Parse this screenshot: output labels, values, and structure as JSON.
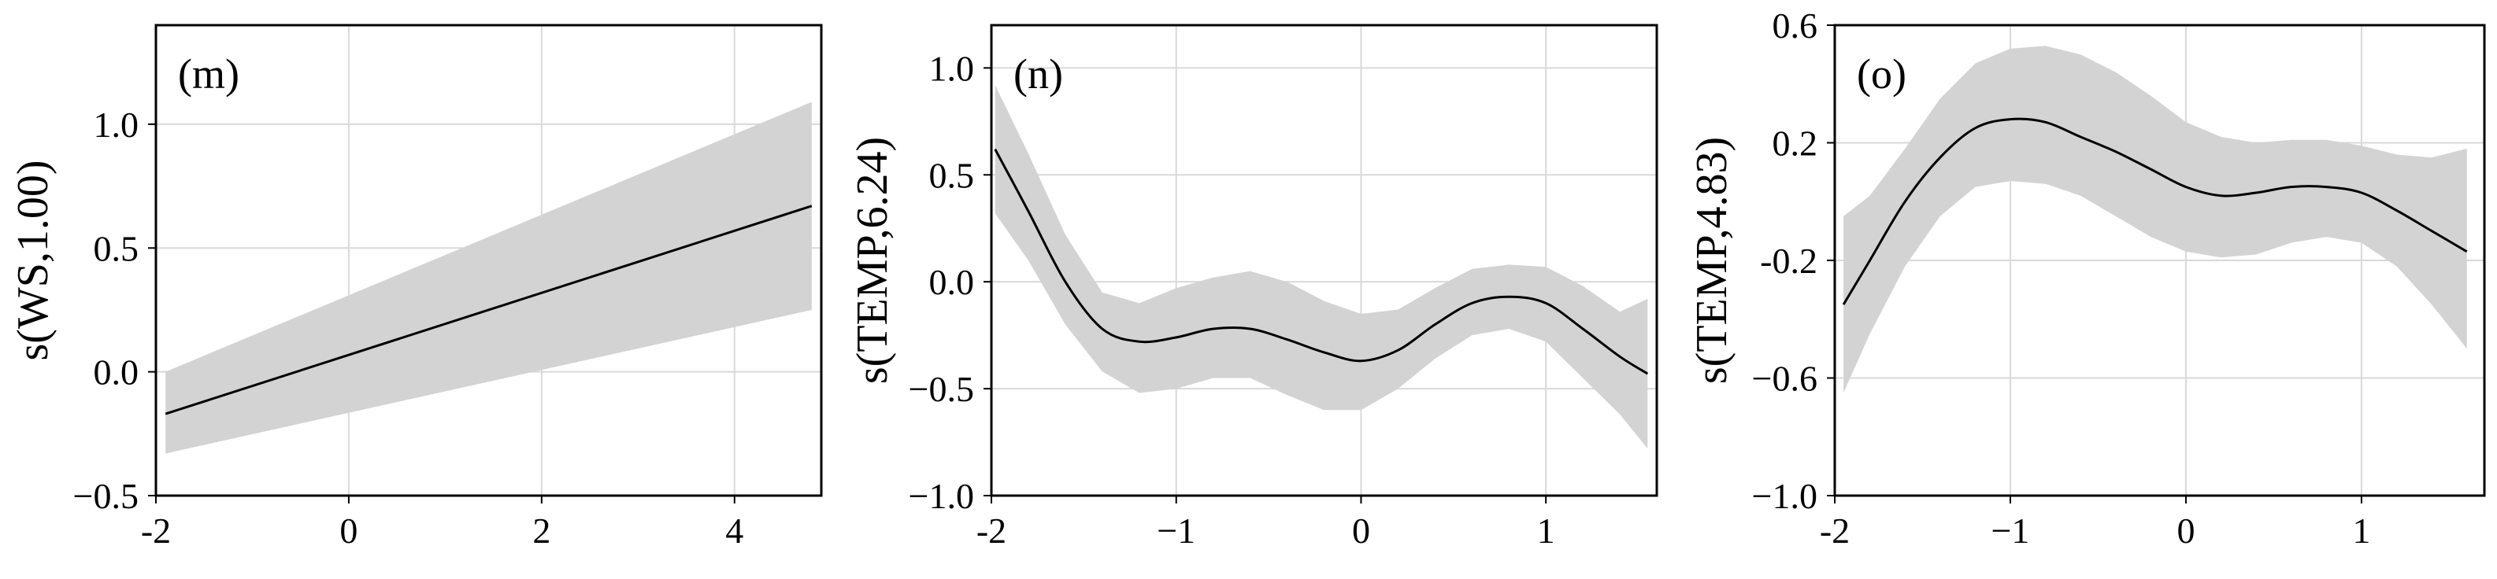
{
  "chart_data": [
    {
      "type": "line",
      "panel_label": "(m)",
      "ylabel": "s(WS,1.00)",
      "xlim": [
        -2,
        4.9
      ],
      "ylim": [
        -0.5,
        1.4
      ],
      "xticks": [
        -2,
        0,
        2,
        4
      ],
      "yticks": [
        -0.5,
        0.0,
        0.5,
        1.0
      ],
      "xtick_labels": [
        "-2",
        "0",
        "2",
        "4"
      ],
      "ytick_labels": [
        "−0.5",
        "0.0",
        "0.5",
        "1.0"
      ],
      "grid": true,
      "series": [
        {
          "x": [
            -1.9,
            4.8
          ],
          "y": [
            -0.17,
            0.67
          ],
          "lower": [
            -0.33,
            0.25
          ],
          "upper": [
            0.0,
            1.09
          ]
        }
      ]
    },
    {
      "type": "line",
      "panel_label": "(n)",
      "ylabel": "s(TEMP,6.24)",
      "xlim": [
        -2.0,
        1.6
      ],
      "ylim": [
        -1.0,
        1.2
      ],
      "xticks": [
        -2,
        -1,
        0,
        1
      ],
      "yticks": [
        -1.0,
        -0.5,
        0.0,
        0.5,
        1.0
      ],
      "xtick_labels": [
        "-2",
        "−1",
        "0",
        "1"
      ],
      "ytick_labels": [
        "−1.0",
        "−0.5",
        "0.0",
        "0.5",
        "1.0"
      ],
      "grid": true,
      "series": [
        {
          "x": [
            -1.98,
            -1.8,
            -1.6,
            -1.4,
            -1.2,
            -1.0,
            -0.8,
            -0.6,
            -0.4,
            -0.2,
            0.0,
            0.2,
            0.4,
            0.6,
            0.8,
            1.0,
            1.2,
            1.4,
            1.55
          ],
          "y": [
            0.62,
            0.33,
            0.0,
            -0.22,
            -0.28,
            -0.26,
            -0.22,
            -0.22,
            -0.27,
            -0.33,
            -0.37,
            -0.32,
            -0.2,
            -0.1,
            -0.07,
            -0.1,
            -0.22,
            -0.35,
            -0.43
          ],
          "lower": [
            0.32,
            0.1,
            -0.2,
            -0.42,
            -0.52,
            -0.5,
            -0.45,
            -0.45,
            -0.53,
            -0.6,
            -0.6,
            -0.5,
            -0.36,
            -0.25,
            -0.22,
            -0.28,
            -0.45,
            -0.62,
            -0.78
          ],
          "upper": [
            0.92,
            0.6,
            0.22,
            -0.05,
            -0.1,
            -0.03,
            0.02,
            0.05,
            0.0,
            -0.09,
            -0.15,
            -0.13,
            -0.03,
            0.06,
            0.08,
            0.07,
            -0.02,
            -0.14,
            -0.08
          ]
        }
      ]
    },
    {
      "type": "line",
      "panel_label": "(o)",
      "ylabel": "s(TEMP,4.83)",
      "xlim": [
        -2.0,
        1.7
      ],
      "ylim": [
        -1.0,
        0.6
      ],
      "xticks": [
        -2,
        -1,
        0,
        1
      ],
      "yticks": [
        -1.0,
        -0.6,
        -0.2,
        0.2,
        0.6
      ],
      "xtick_labels": [
        "-2",
        "−1",
        "0",
        "1"
      ],
      "ytick_labels": [
        "−1.0",
        "−0.6",
        "-0.2",
        "0.2",
        "0.6"
      ],
      "grid": true,
      "series": [
        {
          "x": [
            -1.95,
            -1.8,
            -1.6,
            -1.4,
            -1.2,
            -1.0,
            -0.8,
            -0.6,
            -0.4,
            -0.2,
            0.0,
            0.2,
            0.4,
            0.6,
            0.8,
            1.0,
            1.2,
            1.4,
            1.6
          ],
          "y": [
            -0.35,
            -0.2,
            0.0,
            0.15,
            0.25,
            0.28,
            0.27,
            0.22,
            0.17,
            0.11,
            0.05,
            0.02,
            0.03,
            0.05,
            0.05,
            0.03,
            -0.03,
            -0.1,
            -0.17
          ],
          "lower": [
            -0.65,
            -0.45,
            -0.22,
            -0.05,
            0.05,
            0.07,
            0.06,
            0.02,
            -0.05,
            -0.12,
            -0.17,
            -0.19,
            -0.18,
            -0.14,
            -0.12,
            -0.14,
            -0.22,
            -0.35,
            -0.5
          ],
          "upper": [
            -0.05,
            0.02,
            0.18,
            0.35,
            0.47,
            0.52,
            0.53,
            0.5,
            0.44,
            0.36,
            0.27,
            0.22,
            0.2,
            0.21,
            0.21,
            0.19,
            0.16,
            0.15,
            0.18
          ]
        }
      ]
    }
  ]
}
